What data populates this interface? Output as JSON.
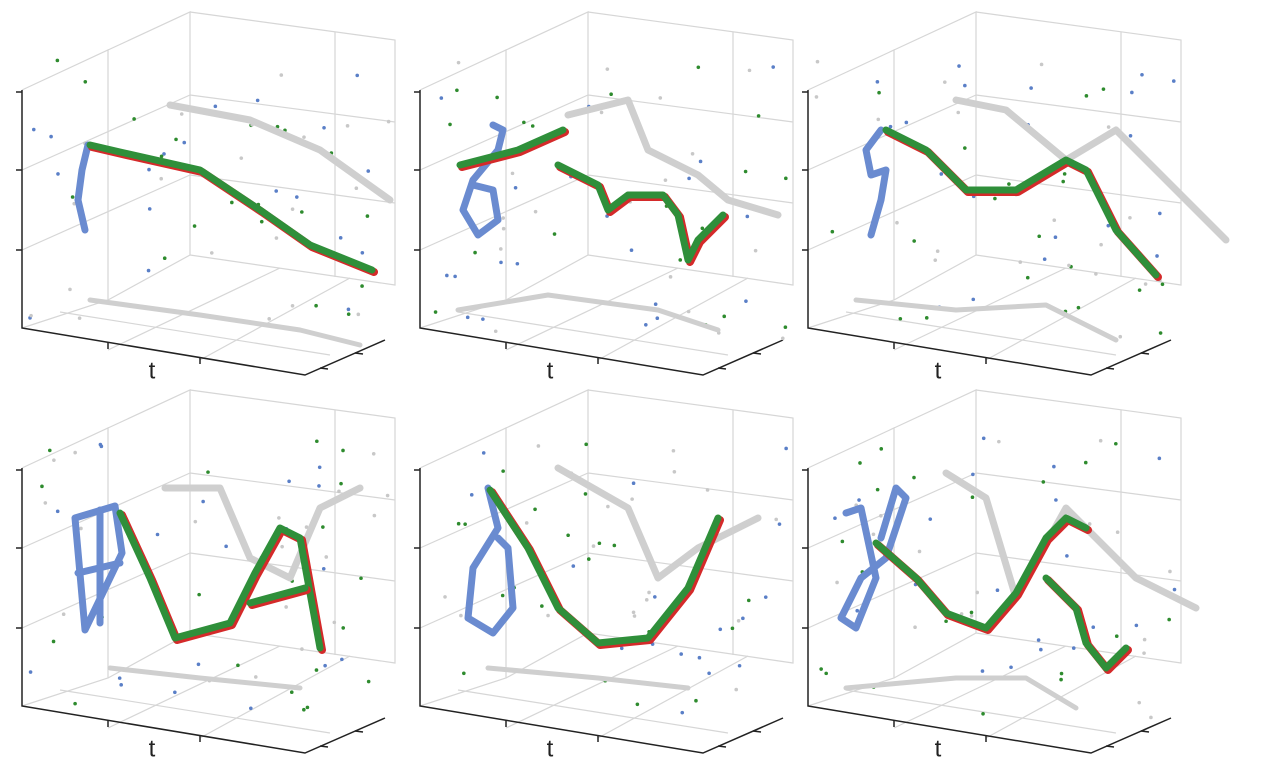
{
  "panels": [
    {
      "axis_label": "t"
    },
    {
      "axis_label": "t"
    },
    {
      "axis_label": "t"
    },
    {
      "axis_label": "t"
    },
    {
      "axis_label": "t"
    },
    {
      "axis_label": "t"
    }
  ]
}
